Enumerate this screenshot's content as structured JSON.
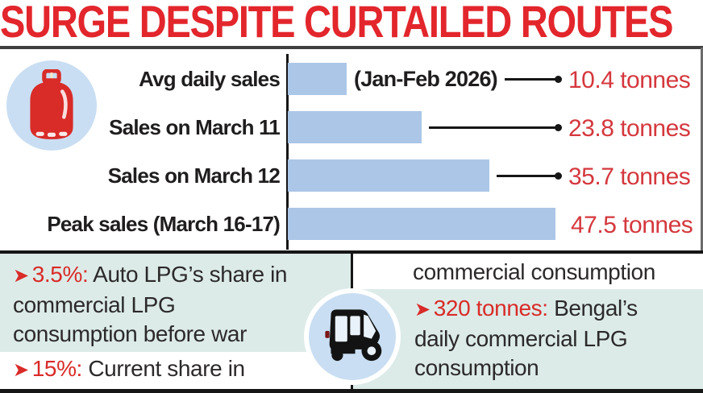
{
  "title": "SURGE DESPITE CURTAILED ROUTES",
  "colors": {
    "headline_red": "#e2262c",
    "value_red": "#d4383e",
    "accent_red": "#d92b28",
    "bar_blue": "#abc6e7",
    "icon_circle_blue": "#c9def2",
    "panel_teal": "#dcebe8",
    "text_dark": "#1f1d1e",
    "line_black": "#161616"
  },
  "chart_data": {
    "type": "bar",
    "orientation": "horizontal",
    "unit": "tonnes",
    "xlim": [
      0,
      47.5
    ],
    "grid": false,
    "legend": false,
    "categories": [
      "Avg daily sales",
      "Sales on March 11",
      "Sales on March 12",
      "Peak sales (March 16-17)"
    ],
    "values": [
      10.4,
      23.8,
      35.7,
      47.5
    ],
    "rows": [
      {
        "label": "Avg daily sales",
        "annotation": "(Jan-Feb 2026)",
        "value": 10.4,
        "value_label": "10.4 tonnes",
        "connector": true
      },
      {
        "label": "Sales on March 11",
        "annotation": "",
        "value": 23.8,
        "value_label": "23.8 tonnes",
        "connector": true
      },
      {
        "label": "Sales on March 12",
        "annotation": "",
        "value": 35.7,
        "value_label": "35.7 tonnes",
        "connector": true
      },
      {
        "label": "Peak sales (March 16-17)",
        "annotation": "",
        "value": 47.5,
        "value_label": "47.5 tonnes",
        "connector": false
      }
    ]
  },
  "facts": {
    "fact1": {
      "bullet": "➤",
      "highlight": "3.5%:",
      "text": "Auto LPG’s share in commercial LPG consumption before war"
    },
    "fact2": {
      "bullet": "➤",
      "highlight": "15%:",
      "text": "Current share in"
    },
    "fact2_continued": "commercial consumption",
    "fact3": {
      "bullet": "➤",
      "highlight": "320 tonnes:",
      "text": "Bengal’s daily commercial LPG consumption"
    }
  },
  "icons": {
    "cylinder": "lpg-cylinder-icon",
    "rickshaw": "auto-rickshaw-icon"
  }
}
